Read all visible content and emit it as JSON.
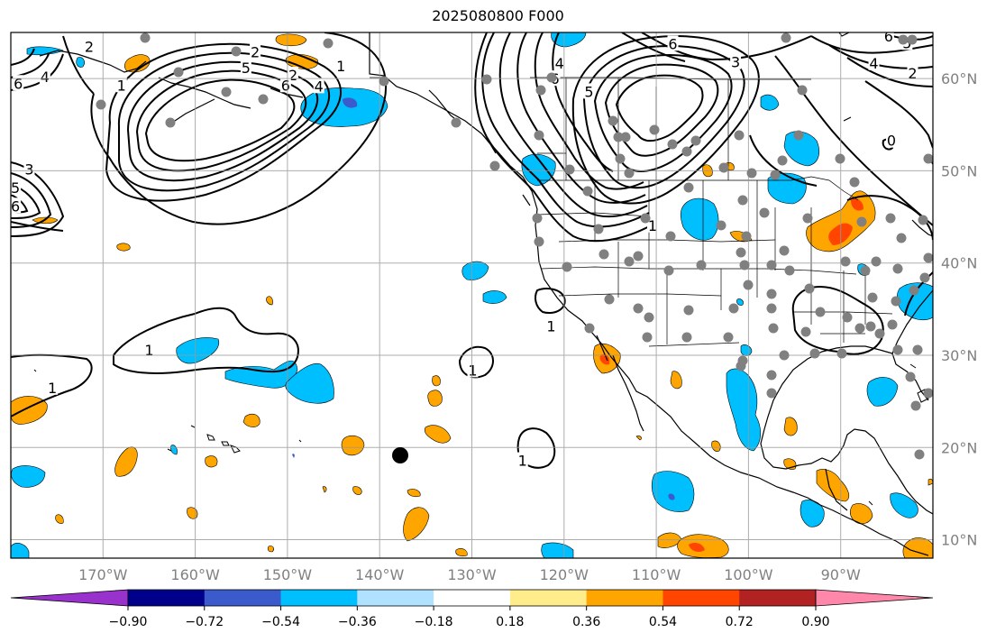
{
  "title": "2025080800 F000",
  "map": {
    "lon_range": [
      -180,
      -80
    ],
    "lat_range": [
      8,
      65
    ],
    "gridlines": true,
    "lon_ticks": [
      {
        "value": -170,
        "label": "170°W"
      },
      {
        "value": -160,
        "label": "160°W"
      },
      {
        "value": -150,
        "label": "150°W"
      },
      {
        "value": -140,
        "label": "140°W"
      },
      {
        "value": -130,
        "label": "130°W"
      },
      {
        "value": -120,
        "label": "120°W"
      },
      {
        "value": -110,
        "label": "110°W"
      },
      {
        "value": -100,
        "label": "100°W"
      },
      {
        "value": -90,
        "label": "90°W"
      }
    ],
    "lat_ticks": [
      {
        "value": 60,
        "label": "60°N"
      },
      {
        "value": 50,
        "label": "50°N"
      },
      {
        "value": 40,
        "label": "40°N"
      },
      {
        "value": 30,
        "label": "30°N"
      },
      {
        "value": 20,
        "label": "20°N"
      },
      {
        "value": 10,
        "label": "10°N"
      }
    ],
    "tick_label_color": "#808080",
    "contour_labels": [
      {
        "text": "2",
        "lon": -171.5,
        "lat": 63.5
      },
      {
        "text": "6",
        "lon": -179.2,
        "lat": 59.5
      },
      {
        "text": "4",
        "lon": -176.3,
        "lat": 60.2
      },
      {
        "text": "1",
        "lon": -168,
        "lat": 59.3
      },
      {
        "text": "3",
        "lon": -178,
        "lat": 50.2
      },
      {
        "text": "6",
        "lon": -179.5,
        "lat": 46.2
      },
      {
        "text": "5",
        "lon": -179.5,
        "lat": 48.2
      },
      {
        "text": "2",
        "lon": -153.5,
        "lat": 62.9
      },
      {
        "text": "5",
        "lon": -154.5,
        "lat": 61.2
      },
      {
        "text": "1",
        "lon": -144.2,
        "lat": 61.4
      },
      {
        "text": "2",
        "lon": -149.4,
        "lat": 60.4
      },
      {
        "text": "6",
        "lon": -150.2,
        "lat": 59.3
      },
      {
        "text": "4",
        "lon": -146.6,
        "lat": 59.2
      },
      {
        "text": "4",
        "lon": -120.5,
        "lat": 61.7
      },
      {
        "text": "6",
        "lon": -121,
        "lat": 60.0
      },
      {
        "text": "5",
        "lon": -117.3,
        "lat": 58.6
      },
      {
        "text": "6",
        "lon": -108.2,
        "lat": 63.8
      },
      {
        "text": "3",
        "lon": -101.4,
        "lat": 61.8
      },
      {
        "text": "1",
        "lon": -110.4,
        "lat": 44.1
      },
      {
        "text": "6",
        "lon": -84.8,
        "lat": 64.6
      },
      {
        "text": "5",
        "lon": -82.8,
        "lat": 63.9
      },
      {
        "text": "4",
        "lon": -86.4,
        "lat": 61.7
      },
      {
        "text": "2",
        "lon": -82.2,
        "lat": 60.6
      },
      {
        "text": "0",
        "lon": -84.5,
        "lat": 53.3
      },
      {
        "text": "1",
        "lon": -165,
        "lat": 30.6
      },
      {
        "text": "1",
        "lon": -175.5,
        "lat": 26.5
      },
      {
        "text": "1",
        "lon": -129.9,
        "lat": 28.4
      },
      {
        "text": "1",
        "lon": -121.4,
        "lat": 33.2
      },
      {
        "text": "1",
        "lon": -124.5,
        "lat": 18.6
      }
    ]
  },
  "colorbar": {
    "ticks": [
      "−0.90",
      "−0.72",
      "−0.54",
      "−0.36",
      "−0.18",
      "0.18",
      "0.36",
      "0.54",
      "0.72",
      "0.90"
    ],
    "colors": [
      "#9932cc",
      "#00008b",
      "#3b5bcc",
      "#00bfff",
      "#b0e2ff",
      "#ffffff",
      "#ffec8b",
      "#ffa500",
      "#ff4500",
      "#b22222",
      "#ff88aa"
    ]
  }
}
